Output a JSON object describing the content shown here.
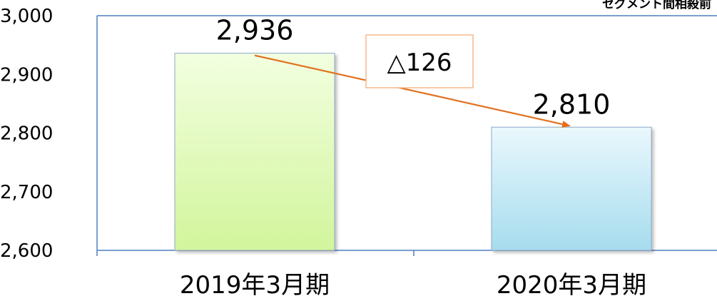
{
  "chart_data": {
    "type": "bar",
    "categories": [
      "2019年3月期",
      "2020年3月期"
    ],
    "values": [
      2936,
      2810
    ],
    "data_labels": [
      "2,936",
      "2,810"
    ],
    "ylim": [
      2600,
      3000
    ],
    "yticks": [
      2600,
      2700,
      2800,
      2900,
      3000
    ],
    "ytick_labels": [
      "2,600",
      "2,700",
      "2,800",
      "2,900",
      "3,000"
    ],
    "grid": false,
    "note": "セグメント間相殺前",
    "annotation": {
      "text": "△126",
      "arrow": {
        "from_category": 0,
        "to_category": 1
      }
    },
    "colors": {
      "bar1_top": "#f2ffe0",
      "bar1_bottom": "#d2f59c",
      "bar2_top": "#eaf8fd",
      "bar2_bottom": "#a6dcee",
      "axis": "#4f7fbf",
      "arrow": "#e2701e",
      "annotation_border": "#f5b98a"
    }
  }
}
